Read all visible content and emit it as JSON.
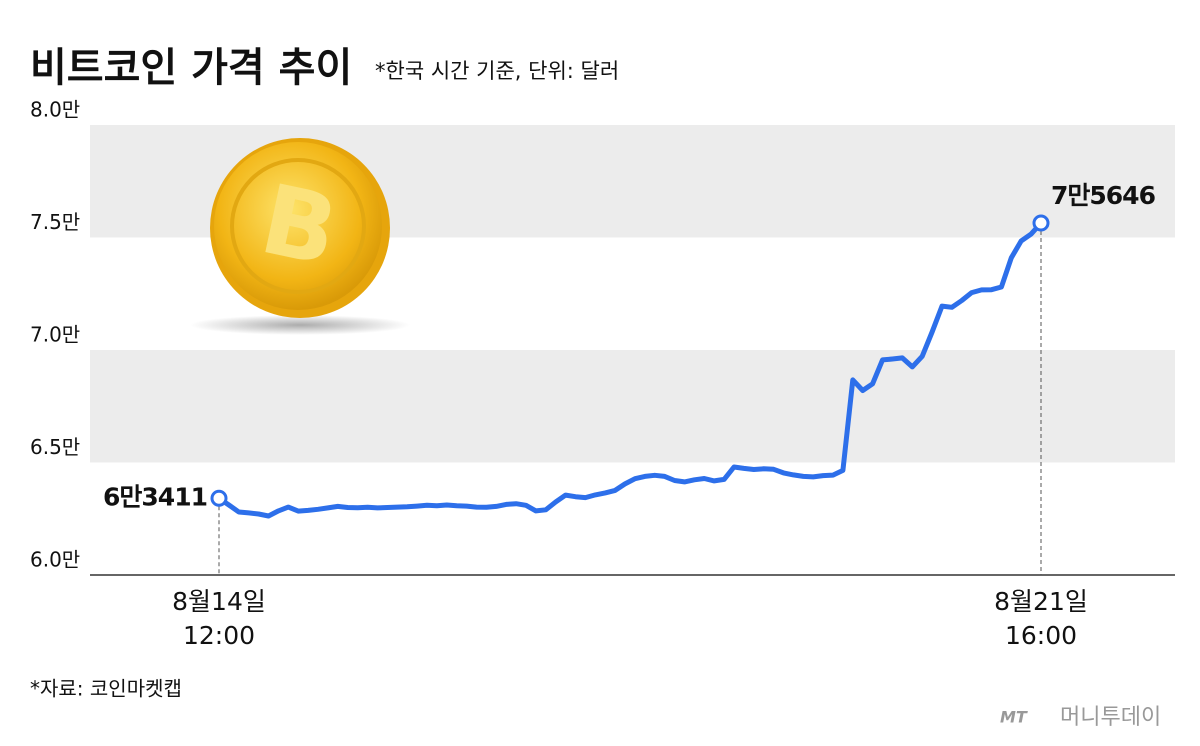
{
  "title": "비트코인 가격 추이",
  "subtitle": "*한국 시간 기준, 단위: 달러",
  "source": "*자료: 코인마켓캡",
  "brand_logo": "MT",
  "brand": "머니투데이",
  "chart_data": {
    "type": "line",
    "color": "#2d6fea",
    "categories": [
      "8월14일\n12:00",
      null,
      null,
      null,
      null,
      null,
      null,
      null,
      null,
      null,
      null,
      null,
      null,
      null,
      null,
      null,
      null,
      null,
      null,
      null,
      null,
      null,
      null,
      null,
      null,
      null,
      null,
      null,
      null,
      null,
      null,
      null,
      null,
      null,
      null,
      null,
      null,
      null,
      null,
      null,
      null,
      null,
      null,
      null,
      null,
      null,
      null,
      null,
      null,
      null,
      null,
      null,
      null,
      null,
      null,
      null,
      null,
      null,
      null,
      null,
      null,
      null,
      null,
      null,
      null,
      null,
      null,
      null,
      null,
      null,
      null,
      null,
      null,
      null,
      null,
      null,
      null,
      null,
      null,
      null,
      null,
      null,
      null,
      "8월21일\n16:00"
    ],
    "values": [
      63411,
      63110,
      62800,
      62760,
      62710,
      62620,
      62850,
      63020,
      62840,
      62870,
      62920,
      62980,
      63050,
      63000,
      62990,
      63010,
      62980,
      63000,
      63020,
      63030,
      63060,
      63100,
      63080,
      63110,
      63080,
      63060,
      63020,
      63010,
      63050,
      63140,
      63170,
      63100,
      62850,
      62900,
      63250,
      63550,
      63480,
      63440,
      63560,
      63650,
      63760,
      64050,
      64280,
      64380,
      64430,
      64380,
      64200,
      64140,
      64230,
      64290,
      64180,
      64250,
      64800,
      64740,
      64690,
      64720,
      64700,
      64540,
      64450,
      64380,
      64360,
      64420,
      64440,
      64650,
      68670,
      68200,
      68500,
      69560,
      69600,
      69650,
      69250,
      69720,
      70800,
      71950,
      71900,
      72200,
      72550,
      72670,
      72680,
      72800,
      74100,
      74850,
      75150,
      75646
    ],
    "value_labels": [
      "6만3411",
      null,
      null,
      null,
      null,
      null,
      null,
      null,
      null,
      null,
      null,
      null,
      null,
      null,
      null,
      null,
      null,
      null,
      null,
      null,
      null,
      null,
      null,
      null,
      null,
      null,
      null,
      null,
      null,
      null,
      null,
      null,
      null,
      null,
      null,
      null,
      null,
      null,
      null,
      null,
      null,
      null,
      null,
      null,
      null,
      null,
      null,
      null,
      null,
      null,
      null,
      null,
      null,
      null,
      null,
      null,
      null,
      null,
      null,
      null,
      null,
      null,
      null,
      null,
      null,
      null,
      null,
      null,
      null,
      null,
      null,
      null,
      null,
      null,
      null,
      null,
      null,
      null,
      null,
      null,
      null,
      null,
      null,
      "7만5646"
    ],
    "ylim": [
      60000,
      80000
    ],
    "yticks": [
      {
        "value": 60000,
        "label": "6.0만"
      },
      {
        "value": 65000,
        "label": "6.5만"
      },
      {
        "value": 70000,
        "label": "7.0만"
      },
      {
        "value": 75000,
        "label": "7.5만"
      },
      {
        "value": 80000,
        "label": "8.0만"
      }
    ],
    "bands": true
  }
}
